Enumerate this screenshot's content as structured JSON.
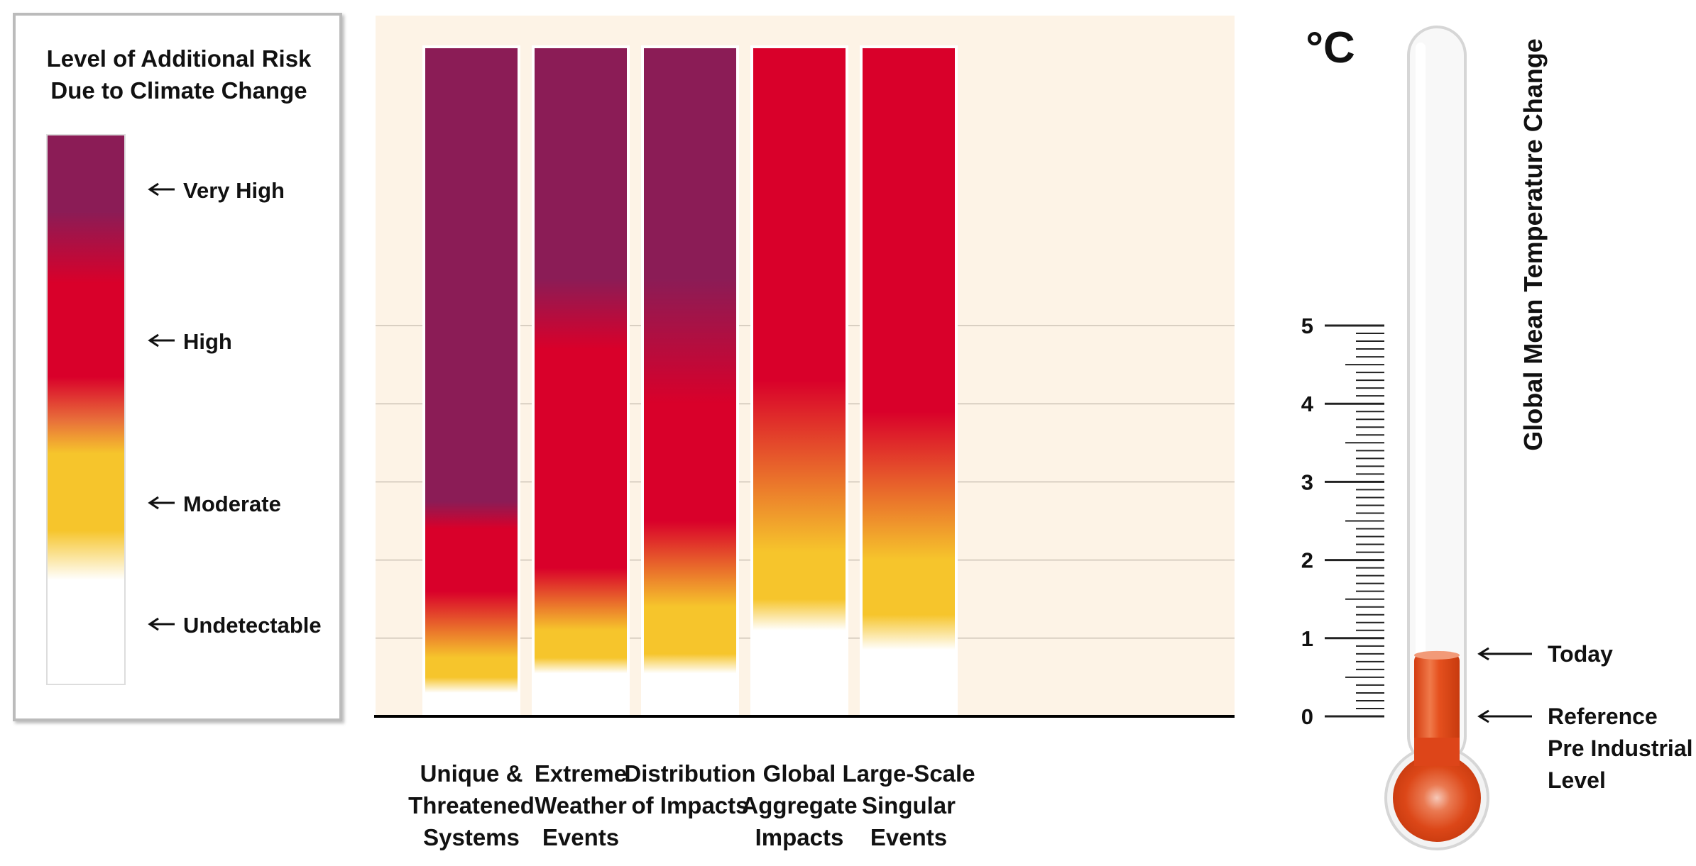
{
  "legend": {
    "title_lines": [
      "Level of Additional Risk",
      "Due to Climate Change"
    ],
    "levels": [
      "Very High",
      "High",
      "Moderate",
      "Undetectable"
    ]
  },
  "colors": {
    "very_high": "#8b1c56",
    "high": "#d9002a",
    "moderate": "#f6c52c",
    "undetectable": "#ffffff",
    "panel_background": "#fdf3e6",
    "thermometer_fluid": "#e04a1c"
  },
  "thermometer": {
    "unit": "°C",
    "axis_title": "Global Mean Temperature Change",
    "current_level_c": 0.8,
    "markers": [
      {
        "value": 0.8,
        "lines": [
          "Today"
        ]
      },
      {
        "value": 0,
        "lines": [
          "Reference",
          "Pre Industrial",
          "Level"
        ]
      }
    ]
  },
  "chart_data": {
    "type": "bar",
    "title": "",
    "xlabel": "",
    "ylabel": "Global Mean Temperature Change",
    "unit": "°C",
    "ylim": [
      0,
      5.6
    ],
    "yticks": [
      0,
      1,
      2,
      3,
      4,
      5
    ],
    "minor_tick_step": 0.1,
    "grid": true,
    "categories": [
      {
        "lines": [
          "Unique &",
          "Threatened",
          "Systems"
        ]
      },
      {
        "lines": [
          "Extreme",
          "Weather",
          "Events"
        ]
      },
      {
        "lines": [
          "Distribution",
          "of Impacts"
        ]
      },
      {
        "lines": [
          "Global",
          "Aggregate",
          "Impacts"
        ]
      },
      {
        "lines": [
          "Large-Scale",
          "Singular",
          "Events"
        ]
      }
    ],
    "risk_transitions": [
      [
        {
          "t": 0.3,
          "level": "undetectable"
        },
        {
          "t": 0.5,
          "level": "moderate"
        },
        {
          "t": 0.75,
          "level": "moderate"
        },
        {
          "t": 1.6,
          "level": "high"
        },
        {
          "t": 2.4,
          "level": "high"
        },
        {
          "t": 2.75,
          "level": "very_high"
        },
        {
          "t": 5.6,
          "level": "very_high"
        }
      ],
      [
        {
          "t": 0.55,
          "level": "undetectable"
        },
        {
          "t": 0.75,
          "level": "moderate"
        },
        {
          "t": 1.1,
          "level": "moderate"
        },
        {
          "t": 1.9,
          "level": "high"
        },
        {
          "t": 4.7,
          "level": "high"
        },
        {
          "t": 5.6,
          "level": "very_high"
        }
      ],
      [
        {
          "t": 0.55,
          "level": "undetectable"
        },
        {
          "t": 0.8,
          "level": "moderate"
        },
        {
          "t": 1.4,
          "level": "moderate"
        },
        {
          "t": 2.5,
          "level": "high"
        },
        {
          "t": 4.0,
          "level": "high"
        },
        {
          "t": 5.6,
          "level": "very_high"
        }
      ],
      [
        {
          "t": 1.1,
          "level": "undetectable"
        },
        {
          "t": 1.5,
          "level": "moderate"
        },
        {
          "t": 2.1,
          "level": "moderate"
        },
        {
          "t": 4.3,
          "level": "high"
        },
        {
          "t": 5.6,
          "level": "high"
        }
      ],
      [
        {
          "t": 0.85,
          "level": "undetectable"
        },
        {
          "t": 1.3,
          "level": "moderate"
        },
        {
          "t": 2.0,
          "level": "moderate"
        },
        {
          "t": 3.9,
          "level": "high"
        },
        {
          "t": 5.6,
          "level": "high"
        }
      ]
    ]
  }
}
